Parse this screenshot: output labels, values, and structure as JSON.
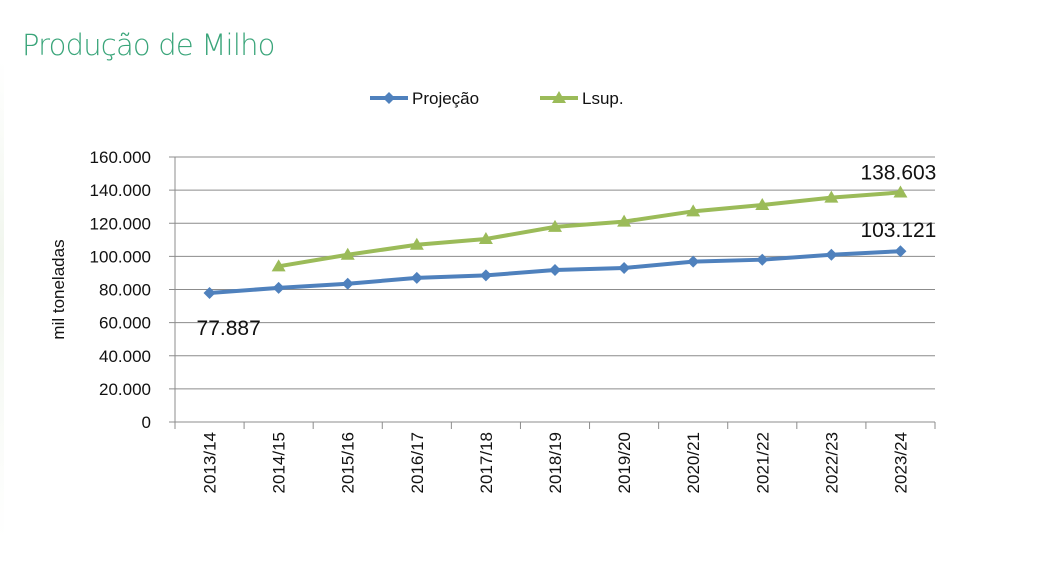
{
  "page": {
    "title": "Produção de Milho"
  },
  "chart_data": {
    "type": "line",
    "title": "",
    "xlabel": "",
    "ylabel": "mil toneladas",
    "categories": [
      "2013/14",
      "2014/15",
      "2015/16",
      "2016/17",
      "2017/18",
      "2018/19",
      "2019/20",
      "2020/21",
      "2021/22",
      "2022/23",
      "2023/24"
    ],
    "yticks": [
      "0",
      "20.000",
      "40.000",
      "60.000",
      "80.000",
      "100.000",
      "120.000",
      "140.000",
      "160.000"
    ],
    "ylim": [
      0,
      160000
    ],
    "grid": true,
    "legend_position": "top",
    "series": [
      {
        "name": "Projeção",
        "color": "#4f81bd",
        "marker": "diamond",
        "values": [
          77887,
          81000,
          83500,
          87000,
          88500,
          91800,
          93000,
          96800,
          98000,
          101000,
          103121
        ]
      },
      {
        "name": "Lsup.",
        "color": "#9bbb59",
        "marker": "triangle",
        "values": [
          null,
          94000,
          101000,
          107000,
          110500,
          117800,
          121000,
          127200,
          131000,
          135500,
          138603
        ]
      }
    ],
    "annotations": [
      {
        "series": 0,
        "index": 0,
        "text": "77.887"
      },
      {
        "series": 0,
        "index": 10,
        "text": "103.121"
      },
      {
        "series": 1,
        "index": 10,
        "text": "138.603"
      }
    ]
  }
}
